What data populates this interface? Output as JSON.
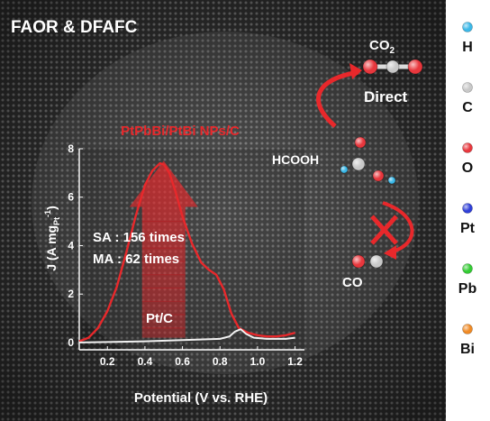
{
  "title": "FAOR & DFAFC",
  "catalyst_label": "PtPbBi/PtBi NPs/C",
  "reference_label": "Pt/C",
  "sa_text": "SA : 156 times",
  "ma_text": "MA : 62 times",
  "molecules": {
    "co2": {
      "base": "CO",
      "sub": "2"
    },
    "direct": "Direct",
    "hcooh": "HCOOH",
    "co": "CO"
  },
  "legend": [
    {
      "label": "H",
      "color": "#3bb8e8"
    },
    {
      "label": "C",
      "color": "#c8c8c8"
    },
    {
      "label": "O",
      "color": "#e8373d"
    },
    {
      "label": "Pt",
      "color": "#2f3fd8"
    },
    {
      "label": "Pb",
      "color": "#33cc33"
    },
    {
      "label": "Bi",
      "color": "#f08a24"
    }
  ],
  "chart_data": {
    "type": "line",
    "xlabel": "Potential (V vs. RHE)",
    "ylabel": {
      "main": "J (A mg",
      "sub": "Pt",
      "end": "-1",
      "close": ")"
    },
    "xlim": [
      0.05,
      1.25
    ],
    "ylim": [
      -0.3,
      8
    ],
    "xticks": [
      0.2,
      0.4,
      0.6,
      0.8,
      1.0,
      1.2
    ],
    "xtick_labels": [
      "0.2",
      "0.4",
      "0.6",
      "0.8",
      "1.0",
      "1.2"
    ],
    "yticks": [
      0,
      2,
      4,
      6,
      8
    ],
    "ytick_labels": [
      "0",
      "2",
      "4",
      "6",
      "8"
    ],
    "series": [
      {
        "name": "PtPbBi/PtBi NPs/C",
        "color": "#e8282b",
        "x": [
          0.05,
          0.1,
          0.15,
          0.2,
          0.25,
          0.3,
          0.35,
          0.4,
          0.44,
          0.48,
          0.5,
          0.53,
          0.56,
          0.6,
          0.65,
          0.7,
          0.74,
          0.78,
          0.82,
          0.86,
          0.9,
          0.95,
          1.0,
          1.05,
          1.1,
          1.15,
          1.2
        ],
        "y": [
          0.05,
          0.2,
          0.6,
          1.3,
          2.3,
          3.7,
          5.2,
          6.5,
          7.1,
          7.4,
          7.35,
          7.0,
          6.3,
          5.2,
          4.1,
          3.3,
          3.0,
          2.8,
          2.2,
          1.2,
          0.6,
          0.4,
          0.3,
          0.25,
          0.25,
          0.3,
          0.4
        ]
      },
      {
        "name": "Pt/C",
        "color": "#f2f2f2",
        "x": [
          0.05,
          0.2,
          0.4,
          0.6,
          0.8,
          0.85,
          0.88,
          0.91,
          0.94,
          0.98,
          1.05,
          1.15,
          1.2
        ],
        "y": [
          0.0,
          0.02,
          0.05,
          0.1,
          0.15,
          0.25,
          0.45,
          0.55,
          0.35,
          0.2,
          0.15,
          0.15,
          0.2
        ]
      }
    ]
  }
}
